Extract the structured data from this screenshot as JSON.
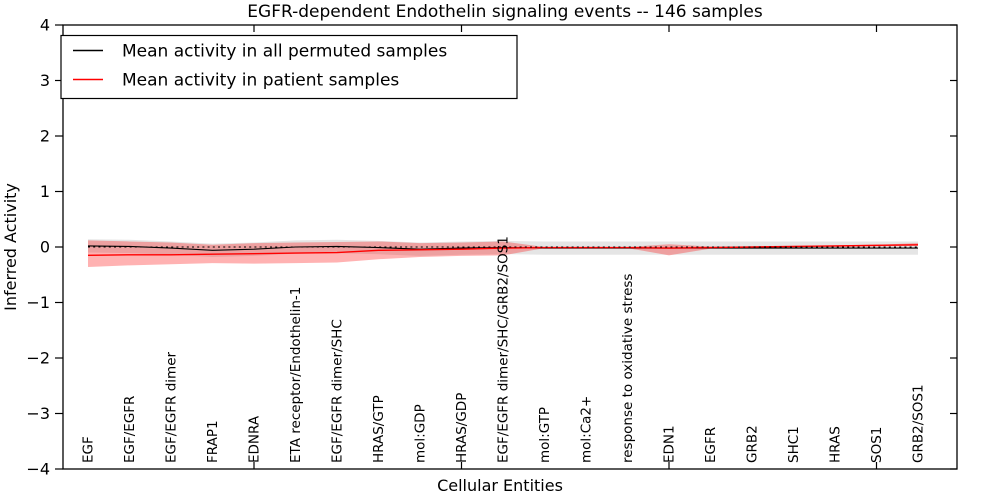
{
  "title": "EGFR-dependent Endothelin signaling events -- 146 samples",
  "chart_data": {
    "type": "line",
    "title": "EGFR-dependent Endothelin signaling events -- 146 samples",
    "xlabel": "Cellular Entities",
    "ylabel": "Inferred Activity",
    "ylim": [
      -4,
      4
    ],
    "yticks": [
      4,
      3,
      2,
      1,
      0,
      -1,
      -2,
      -3,
      -4
    ],
    "ytick_labels": [
      "4",
      "3",
      "2",
      "1",
      "0",
      "−1",
      "−2",
      "−3",
      "−4"
    ],
    "grid": false,
    "legend_position": "upper left",
    "x_major_tick_indices": [
      4,
      9,
      14,
      19
    ],
    "zero_reference_line": {
      "y": 0,
      "style": "dotted",
      "color": "#000000"
    },
    "categories": [
      "EGF",
      "EGF/EGFR",
      "EGF/EGFR dimer",
      "FRAP1",
      "EDNRA",
      "ETA receptor/Endothelin-1",
      "EGF/EGFR dimer/SHC",
      "HRAS/GTP",
      "mol:GDP",
      "HRAS/GDP",
      "EGF/EGFR dimer/SHC/GRB2/SOS1",
      "mol:GTP",
      "mol:Ca2+",
      "response to oxidative stress",
      "EDN1",
      "EGFR",
      "GRB2",
      "SHC1",
      "HRAS",
      "SOS1",
      "GRB2/SOS1"
    ],
    "series": [
      {
        "name": "Mean activity in all permuted samples",
        "color": "#000000",
        "values": [
          0.02,
          0.01,
          -0.02,
          -0.06,
          -0.04,
          0.0,
          0.01,
          -0.01,
          -0.04,
          -0.02,
          -0.01,
          -0.02,
          -0.02,
          -0.02,
          -0.02,
          -0.02,
          -0.02,
          -0.02,
          -0.02,
          -0.02,
          -0.02
        ]
      },
      {
        "name": "Mean activity in patient samples",
        "color": "#ff0000",
        "values": [
          -0.15,
          -0.14,
          -0.14,
          -0.13,
          -0.12,
          -0.11,
          -0.1,
          -0.06,
          -0.05,
          -0.04,
          -0.02,
          -0.01,
          -0.01,
          -0.01,
          -0.02,
          -0.01,
          0.0,
          0.01,
          0.02,
          0.03,
          0.04
        ]
      }
    ],
    "bands": [
      {
        "name": "permuted samples activity range",
        "color": "rgba(0,0,0,0.10)",
        "upper": [
          0.14,
          0.13,
          0.1,
          0.06,
          0.08,
          0.12,
          0.13,
          0.11,
          0.08,
          0.1,
          0.11,
          0.1,
          0.1,
          0.1,
          0.1,
          0.1,
          0.1,
          0.1,
          0.1,
          0.1,
          0.1
        ],
        "lower": [
          -0.1,
          -0.11,
          -0.14,
          -0.18,
          -0.16,
          -0.12,
          -0.11,
          -0.13,
          -0.16,
          -0.14,
          -0.13,
          -0.14,
          -0.14,
          -0.14,
          -0.14,
          -0.14,
          -0.14,
          -0.14,
          -0.14,
          -0.14,
          -0.14
        ]
      },
      {
        "name": "patient samples activity range",
        "color": "rgba(255,0,0,0.30)",
        "upper": [
          0.12,
          0.1,
          0.08,
          0.04,
          0.07,
          0.08,
          0.09,
          0.1,
          0.07,
          0.08,
          0.1,
          0.0,
          0.0,
          0.0,
          0.05,
          0.01,
          0.01,
          0.02,
          0.03,
          0.04,
          0.07
        ],
        "lower": [
          -0.36,
          -0.33,
          -0.31,
          -0.29,
          -0.3,
          -0.29,
          -0.28,
          -0.22,
          -0.18,
          -0.16,
          -0.15,
          -0.02,
          -0.02,
          -0.02,
          -0.15,
          -0.03,
          -0.02,
          -0.01,
          0.0,
          0.01,
          0.02
        ]
      }
    ]
  }
}
